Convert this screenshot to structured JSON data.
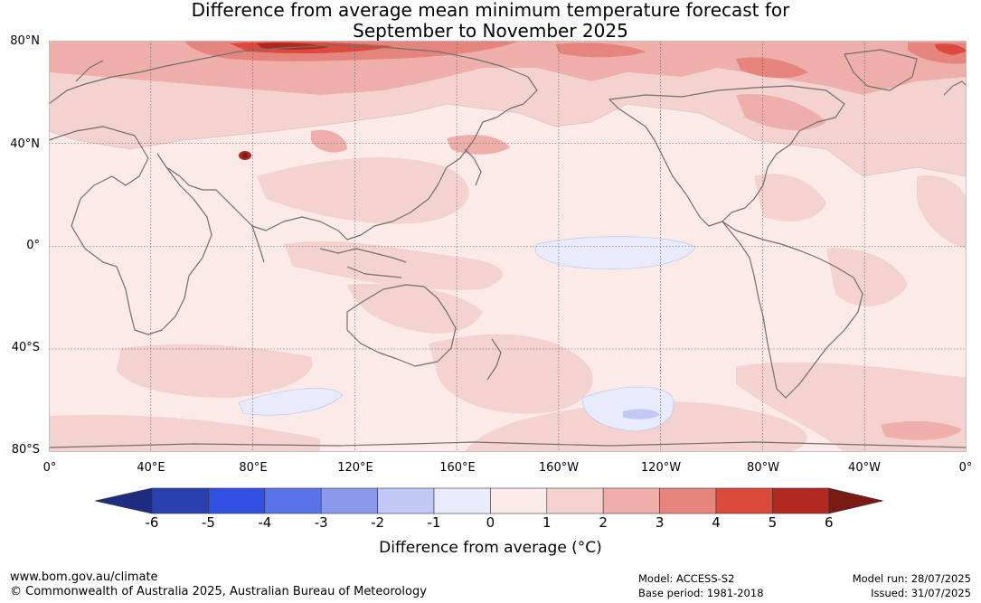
{
  "title": {
    "line1": "Difference from average mean minimum temperature forecast for",
    "line2": "September to November 2025"
  },
  "map": {
    "lat_labels": [
      "80°N",
      "40°N",
      "0°",
      "40°S",
      "80°S"
    ],
    "lon_labels": [
      "0°",
      "40°E",
      "80°E",
      "120°E",
      "160°E",
      "160°W",
      "120°W",
      "80°W",
      "40°W",
      "0°"
    ],
    "colors": {
      "ocean_base": "#fbeae8",
      "land_base": "#fbebe9",
      "coastline": "#707070",
      "grid": "#555555"
    }
  },
  "colorbar": {
    "ticks": [
      "-6",
      "-5",
      "-4",
      "-3",
      "-2",
      "-1",
      "0",
      "1",
      "2",
      "3",
      "4",
      "5",
      "6"
    ],
    "colors": [
      "#1f2d80",
      "#2a3fb0",
      "#3150e0",
      "#5a73e6",
      "#8a99ec",
      "#c1c8f3",
      "#e7ebfb",
      "#fbeae8",
      "#f4d2d0",
      "#eeaeaa",
      "#e6847e",
      "#dc4a3e",
      "#b2281e",
      "#7a1a14"
    ],
    "label": "Difference from average ($^\\circ$C)",
    "label_display": "Difference from average (°C)"
  },
  "footer": {
    "url": "www.bom.gov.au/climate",
    "copyright": "© Commonwealth of Australia 2025, Australian Bureau of Meteorology",
    "model": "Model: ACCESS-S2",
    "base_period": "Base period: 1981-2018",
    "model_run": "Model run: 28/07/2025",
    "issued": "Issued: 31/07/2025"
  }
}
